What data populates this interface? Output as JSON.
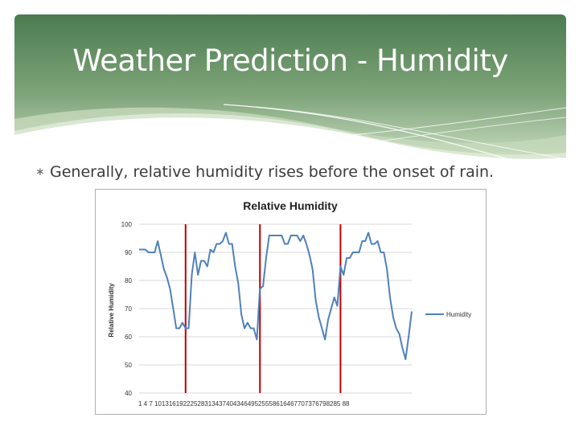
{
  "slide": {
    "title": "Weather Prediction - Humidity",
    "bullet": "Generally, relative humidity rises before the onset of rain.",
    "colors": {
      "header_dark": "#4c7d50",
      "header_light": "#b7cfae",
      "line": "#4f81bd",
      "marker": "#c00000"
    }
  },
  "chart_data": {
    "type": "line",
    "title": "Relative Humidity",
    "ylabel": "Relative Humidity",
    "xlabel": "",
    "ylim": [
      40,
      100
    ],
    "yticks": [
      "40",
      "50",
      "60",
      "70",
      "80",
      "90",
      "100"
    ],
    "x_tick_text": "1 4 7 1013161922252831343740434649525558616467707376798285 88",
    "legend_position": "right",
    "grid": true,
    "series": [
      {
        "name": "Humidity",
        "values": [
          91,
          91,
          91,
          90,
          90,
          90,
          94,
          89,
          84,
          81,
          77,
          70,
          63,
          63,
          65,
          63,
          63,
          82,
          90,
          82,
          87,
          87,
          85,
          91,
          90,
          93,
          93,
          94,
          97,
          93,
          93,
          85,
          79,
          68,
          63,
          65,
          63,
          63,
          59,
          77,
          78,
          88,
          96,
          96,
          96,
          96,
          96,
          93,
          93,
          96,
          96,
          96,
          94,
          96,
          93,
          89,
          84,
          73,
          67,
          63,
          59,
          66,
          70,
          74,
          71,
          85,
          82,
          88,
          88,
          90,
          90,
          90,
          94,
          94,
          97,
          93,
          93,
          94,
          90,
          90,
          84,
          74,
          67,
          63,
          61,
          56,
          52,
          60,
          69
        ]
      }
    ],
    "vertical_markers": [
      16,
      40,
      66
    ]
  }
}
